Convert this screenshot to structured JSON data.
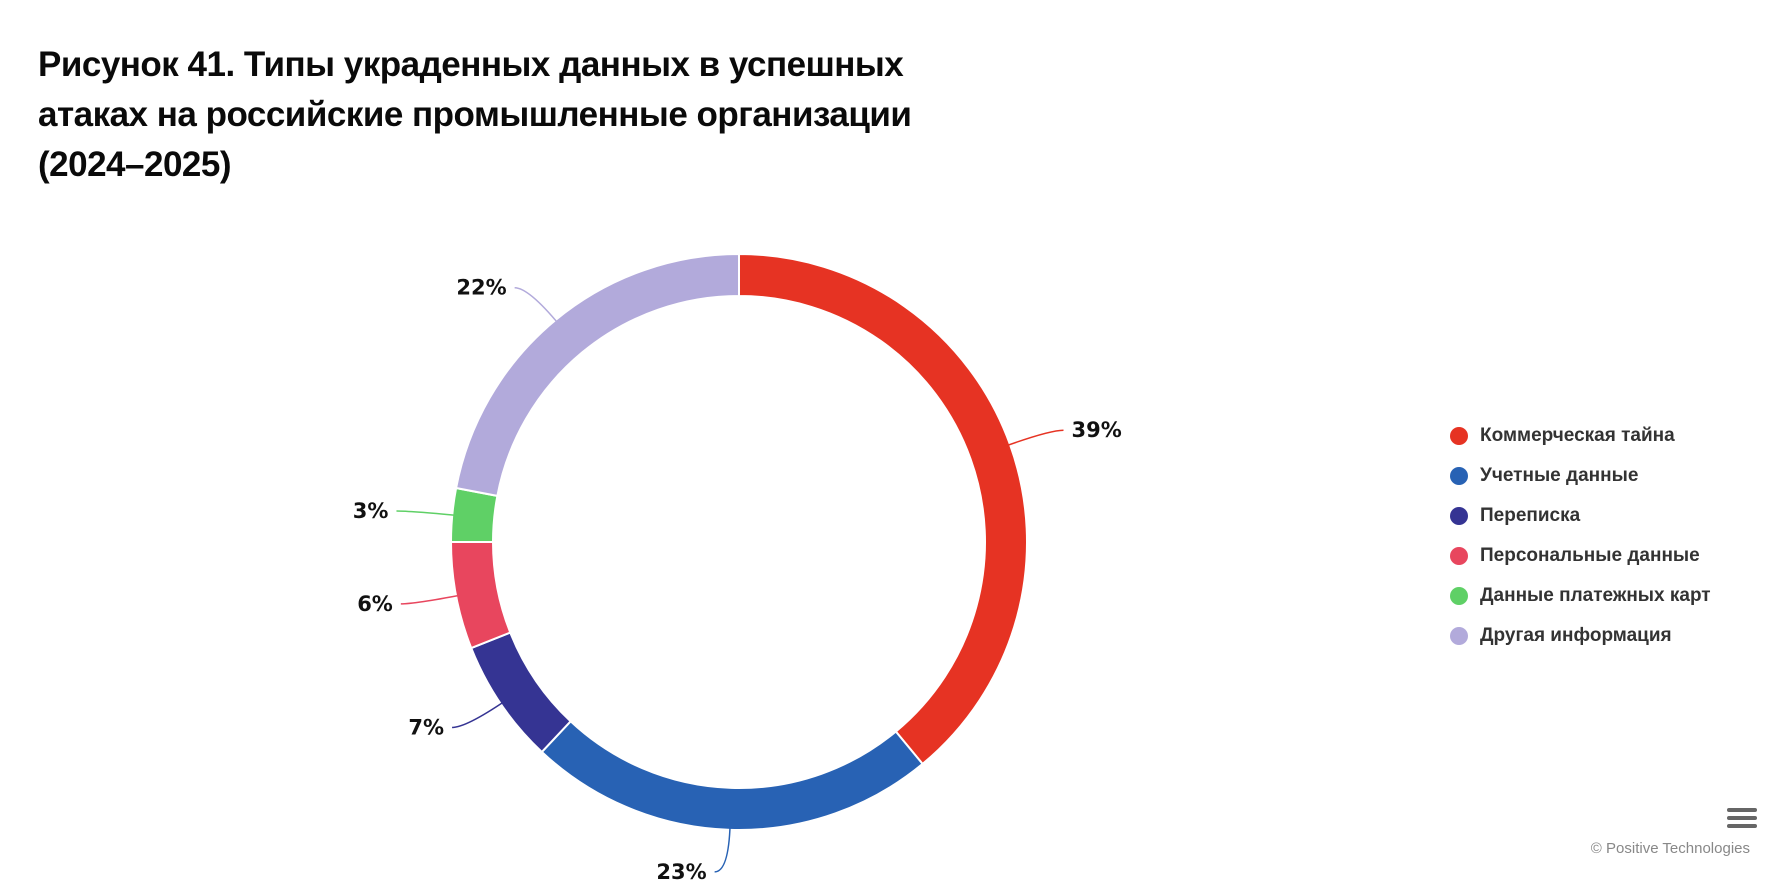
{
  "chart_data": {
    "type": "pie",
    "variant": "donut",
    "title": "Рисунок 41. Типы украденных данных в успешных атаках на российские промышленные организации (2024–2025)",
    "series": [
      {
        "name": "Коммерческая тайна",
        "value": 39,
        "label": "39%",
        "color": "#e63323"
      },
      {
        "name": "Учетные данные",
        "value": 23,
        "label": "23%",
        "color": "#2862b4"
      },
      {
        "name": "Переписка",
        "value": 7,
        "label": "7%",
        "color": "#353493"
      },
      {
        "name": "Персональные данные",
        "value": 6,
        "label": "6%",
        "color": "#e8465e"
      },
      {
        "name": "Данные платежных карт",
        "value": 3,
        "label": "3%",
        "color": "#5fd066"
      },
      {
        "name": "Другая информация",
        "value": 22,
        "label": "22%",
        "color": "#b2aadb"
      }
    ],
    "legend_position": "right"
  },
  "credits": "© Positive Technologies",
  "icons": {
    "menu": "hamburger-menu-icon"
  }
}
